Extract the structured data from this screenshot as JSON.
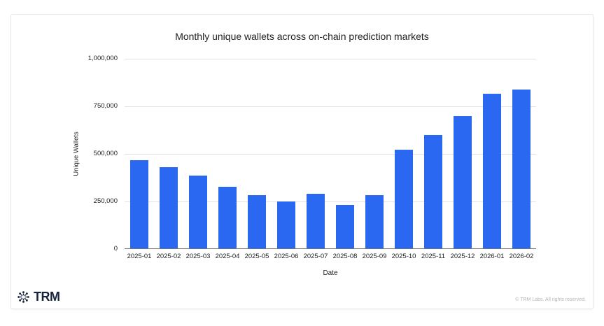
{
  "chart_data": {
    "type": "bar",
    "title": "Monthly unique wallets across on-chain prediction markets",
    "xlabel": "Date",
    "ylabel": "Unique Wallets",
    "categories": [
      "2025-01",
      "2025-02",
      "2025-03",
      "2025-04",
      "2025-05",
      "2025-06",
      "2025-07",
      "2025-08",
      "2025-09",
      "2025-10",
      "2025-11",
      "2025-12",
      "2026-01",
      "2026-02"
    ],
    "values": [
      462000,
      426000,
      383000,
      325000,
      280000,
      245000,
      287000,
      227000,
      278000,
      518000,
      596000,
      695000,
      812000,
      836000
    ],
    "ylim": [
      0,
      1000000
    ],
    "yticks": [
      0,
      250000,
      500000,
      750000,
      1000000
    ],
    "ytick_labels": [
      "0",
      "250,000",
      "500,000",
      "750,000",
      "1,000,000"
    ],
    "bar_color": "#2b68f2",
    "grid": true,
    "legend": false
  },
  "footer": {
    "brand": "TRM",
    "copyright": "© TRM Labs. All rights reserved.",
    "logo_color": "#17243d"
  }
}
